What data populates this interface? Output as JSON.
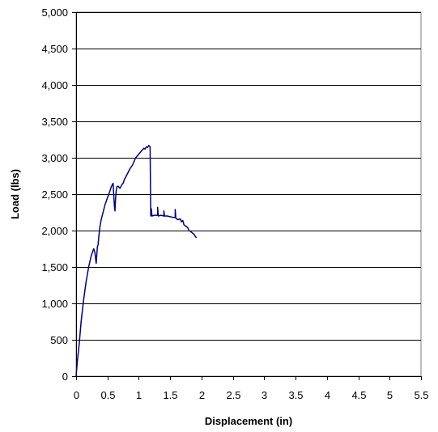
{
  "chart_data": {
    "type": "line",
    "title": "",
    "xlabel": "Displacement (in)",
    "ylabel": "Load (lbs)",
    "xlim": [
      0,
      5.5
    ],
    "ylim": [
      0,
      5000
    ],
    "x_ticks": [
      "0",
      "0.5",
      "1",
      "1.5",
      "2",
      "2.5",
      "3",
      "3.5",
      "4",
      "4.5",
      "5",
      "5.5"
    ],
    "y_ticks": [
      "0",
      "500",
      "1,000",
      "1,500",
      "2,000",
      "2,500",
      "3,000",
      "3,500",
      "4,000",
      "4,500",
      "5,000"
    ],
    "grid": "horizontal",
    "legend": "none",
    "line_color": "#000080",
    "series": [
      {
        "x": [
          0,
          0.02,
          0.05,
          0.08,
          0.12,
          0.16,
          0.2,
          0.24,
          0.28,
          0.3,
          0.32,
          0.34,
          0.35,
          0.36,
          0.38,
          0.4,
          0.43,
          0.46,
          0.5,
          0.53,
          0.56,
          0.59,
          0.61,
          0.62,
          0.63,
          0.64,
          0.65,
          0.67,
          0.7,
          0.73,
          0.75,
          0.77,
          0.8,
          0.83,
          0.86,
          0.9,
          0.95,
          1.0,
          1.05,
          1.08,
          1.1,
          1.12,
          1.14,
          1.16,
          1.18,
          1.19,
          1.2,
          1.21,
          1.25,
          1.3,
          1.3,
          1.31,
          1.35,
          1.4,
          1.4,
          1.41,
          1.45,
          1.5,
          1.55,
          1.58,
          1.58,
          1.59,
          1.62,
          1.66,
          1.68,
          1.7,
          1.72,
          1.75,
          1.78,
          1.8,
          1.82,
          1.85,
          1.88,
          1.9,
          1.92
        ],
        "y": [
          0,
          200,
          450,
          750,
          1050,
          1300,
          1500,
          1650,
          1750,
          1700,
          1550,
          1780,
          1800,
          1900,
          2050,
          2150,
          2250,
          2350,
          2450,
          2520,
          2600,
          2650,
          2350,
          2270,
          2450,
          2550,
          2600,
          2610,
          2580,
          2630,
          2650,
          2700,
          2750,
          2800,
          2850,
          2900,
          3000,
          3050,
          3100,
          3130,
          3120,
          3150,
          3140,
          3170,
          3150,
          2200,
          2300,
          2200,
          2210,
          2210,
          2320,
          2200,
          2210,
          2200,
          2270,
          2200,
          2200,
          2190,
          2180,
          2180,
          2290,
          2170,
          2150,
          2160,
          2120,
          2140,
          2080,
          2060,
          2040,
          2000,
          1990,
          1970,
          1950,
          1920,
          1900
        ]
      }
    ]
  }
}
